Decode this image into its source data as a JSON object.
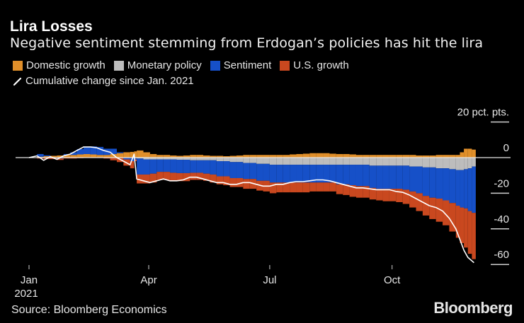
{
  "header": {
    "title": "Lira Losses",
    "subtitle": "Negative sentiment stemming from Erdogan’s policies has hit the lira"
  },
  "legend": [
    {
      "label": "Domestic growth",
      "color": "#e08f2a",
      "icon": "square-swatch"
    },
    {
      "label": "Monetary policy",
      "color": "#bdbdbd",
      "icon": "square-swatch"
    },
    {
      "label": "Sentiment",
      "color": "#1650c8",
      "icon": "square-swatch"
    },
    {
      "label": "U.S. growth",
      "color": "#c9481f",
      "icon": "square-swatch"
    }
  ],
  "line_legend": {
    "label": "Cumulative change since Jan. 2021",
    "color": "#ffffff",
    "icon": "line-swatch"
  },
  "footer": {
    "source": "Source: Bloomberg Economics",
    "logo": "Bloomberg"
  },
  "chart_data": {
    "type": "bar",
    "stacked": true,
    "title": "Lira Losses",
    "subtitle": "Negative sentiment stemming from Erdogan’s policies has hit the lira",
    "xlabel": "",
    "ylabel": "pct. pts.",
    "ylim": [
      -60,
      20
    ],
    "y_ticks": [
      20,
      0,
      -20,
      -40,
      -60
    ],
    "y_tick_labels": [
      "20 pct. pts.",
      "0",
      "-20",
      "-40",
      "-60"
    ],
    "x_ticks": [
      {
        "day": 0,
        "label": "Jan",
        "sublabel": "2021"
      },
      {
        "day": 90,
        "label": "Apr",
        "sublabel": ""
      },
      {
        "day": 181,
        "label": "Jul",
        "sublabel": ""
      },
      {
        "day": 273,
        "label": "Oct",
        "sublabel": ""
      }
    ],
    "x_unit": "day of year 2021",
    "grid": false,
    "legend_position": "top-left",
    "x": [
      0,
      6,
      11,
      16,
      21,
      26,
      31,
      36,
      41,
      46,
      51,
      56,
      61,
      66,
      71,
      76,
      79,
      81,
      86,
      91,
      96,
      101,
      106,
      111,
      116,
      121,
      126,
      131,
      136,
      141,
      146,
      151,
      156,
      161,
      166,
      171,
      176,
      181,
      186,
      191,
      196,
      201,
      206,
      211,
      216,
      221,
      226,
      231,
      236,
      241,
      246,
      251,
      256,
      261,
      266,
      271,
      276,
      281,
      286,
      291,
      296,
      301,
      306,
      311,
      316,
      321,
      324,
      327,
      330,
      333
    ],
    "series": [
      {
        "name": "Domestic growth",
        "color": "#e08f2a",
        "values": [
          0,
          0.5,
          0.8,
          1,
          1.2,
          1.5,
          1.5,
          1.8,
          2,
          1.8,
          1.5,
          1.5,
          2,
          2.5,
          3,
          3.2,
          3.5,
          4,
          3,
          2,
          1.5,
          1.5,
          1.2,
          1,
          1.2,
          1.5,
          1.5,
          1.2,
          1,
          1,
          0.8,
          1,
          1.2,
          1.5,
          1.5,
          1.5,
          1.5,
          1.5,
          1.5,
          1.5,
          1.8,
          2,
          2.2,
          2.5,
          2.5,
          2.5,
          2.2,
          2,
          2,
          1.8,
          1.5,
          1.5,
          1.5,
          1.5,
          1.5,
          1.5,
          1.5,
          1.5,
          1.5,
          1.2,
          1.2,
          1.2,
          1.5,
          1.5,
          1.5,
          1.5,
          3,
          5,
          5,
          4.5
        ]
      },
      {
        "name": "Monetary policy",
        "color": "#bdbdbd",
        "values": [
          0,
          0,
          0,
          0,
          0,
          0,
          0,
          0,
          0,
          0,
          0,
          0,
          0,
          0,
          0,
          0,
          0,
          -0.5,
          -1,
          -1,
          -1,
          -1,
          -1,
          -1.2,
          -1.2,
          -1.5,
          -1.5,
          -1.5,
          -1.5,
          -2,
          -2,
          -2.5,
          -2.5,
          -3,
          -3,
          -3.5,
          -3.5,
          -4,
          -4,
          -4,
          -4,
          -4,
          -4,
          -4,
          -4,
          -4,
          -4,
          -4,
          -4,
          -4,
          -4,
          -4,
          -4.5,
          -4.5,
          -4.5,
          -4.5,
          -4.5,
          -4.5,
          -5,
          -5,
          -5.5,
          -5.5,
          -6,
          -6,
          -6.5,
          -7,
          -7,
          -6.5,
          -6,
          -5
        ]
      },
      {
        "name": "Sentiment",
        "color": "#1650c8",
        "values": [
          0,
          1.5,
          0.5,
          0,
          -0.5,
          0.5,
          1.5,
          3,
          4,
          4.5,
          4.5,
          3.5,
          3,
          0.5,
          -1,
          -2,
          -1,
          -9,
          -8.5,
          -8,
          -7,
          -7,
          -7.5,
          -7.5,
          -7.5,
          -7,
          -7,
          -7.5,
          -8,
          -8.5,
          -8.5,
          -9,
          -9,
          -9,
          -9,
          -9.5,
          -9.5,
          -10,
          -10,
          -10,
          -10,
          -10,
          -10,
          -10,
          -10,
          -10,
          -10,
          -11,
          -11,
          -11.5,
          -12,
          -12,
          -12.5,
          -13,
          -13,
          -13,
          -13,
          -13.5,
          -14,
          -15,
          -16,
          -17,
          -17,
          -18,
          -19,
          -20,
          -21,
          -22,
          -24,
          -26
        ]
      },
      {
        "name": "U.S. growth",
        "color": "#c9481f",
        "values": [
          0,
          -0.5,
          -0.8,
          -0.8,
          -0.8,
          -0.5,
          -0.5,
          -0.3,
          0,
          0,
          0,
          -0.5,
          -1.5,
          -2.5,
          -3.5,
          -4,
          -1,
          -5,
          -5,
          -5,
          -4.5,
          -4.5,
          -4.5,
          -4.5,
          -4.5,
          -4,
          -4,
          -4,
          -4.5,
          -4.5,
          -5,
          -5,
          -5,
          -5.5,
          -5.5,
          -5.5,
          -6,
          -6,
          -5.5,
          -5.5,
          -5.5,
          -5.5,
          -5.5,
          -5,
          -5,
          -5,
          -5,
          -5.5,
          -6,
          -6.5,
          -6.5,
          -6.5,
          -6.5,
          -6.5,
          -7,
          -7,
          -7.5,
          -8,
          -9,
          -10,
          -11,
          -12,
          -13,
          -14,
          -16,
          -18,
          -20,
          -22,
          -24,
          -26
        ]
      }
    ],
    "cumulative": {
      "name": "Cumulative change since Jan. 2021",
      "color": "#ffffff",
      "values": [
        0,
        1,
        -1.5,
        0.5,
        -1,
        1,
        2,
        4,
        6,
        6,
        5.5,
        4,
        3,
        0,
        -2,
        -4,
        2,
        -12,
        -13,
        -14,
        -13,
        -12,
        -13,
        -13,
        -12.5,
        -11,
        -11,
        -12,
        -13,
        -14,
        -14,
        -15,
        -15,
        -14,
        -14,
        -15,
        -16,
        -16,
        -15,
        -15,
        -14,
        -13.5,
        -13.5,
        -13,
        -12.5,
        -12.5,
        -13,
        -14,
        -15,
        -16,
        -17,
        -17,
        -17.5,
        -18,
        -18,
        -18,
        -19,
        -19.5,
        -21,
        -23,
        -25,
        -27,
        -28,
        -30,
        -34,
        -40,
        -46,
        -52,
        -56,
        -59
      ]
    }
  }
}
